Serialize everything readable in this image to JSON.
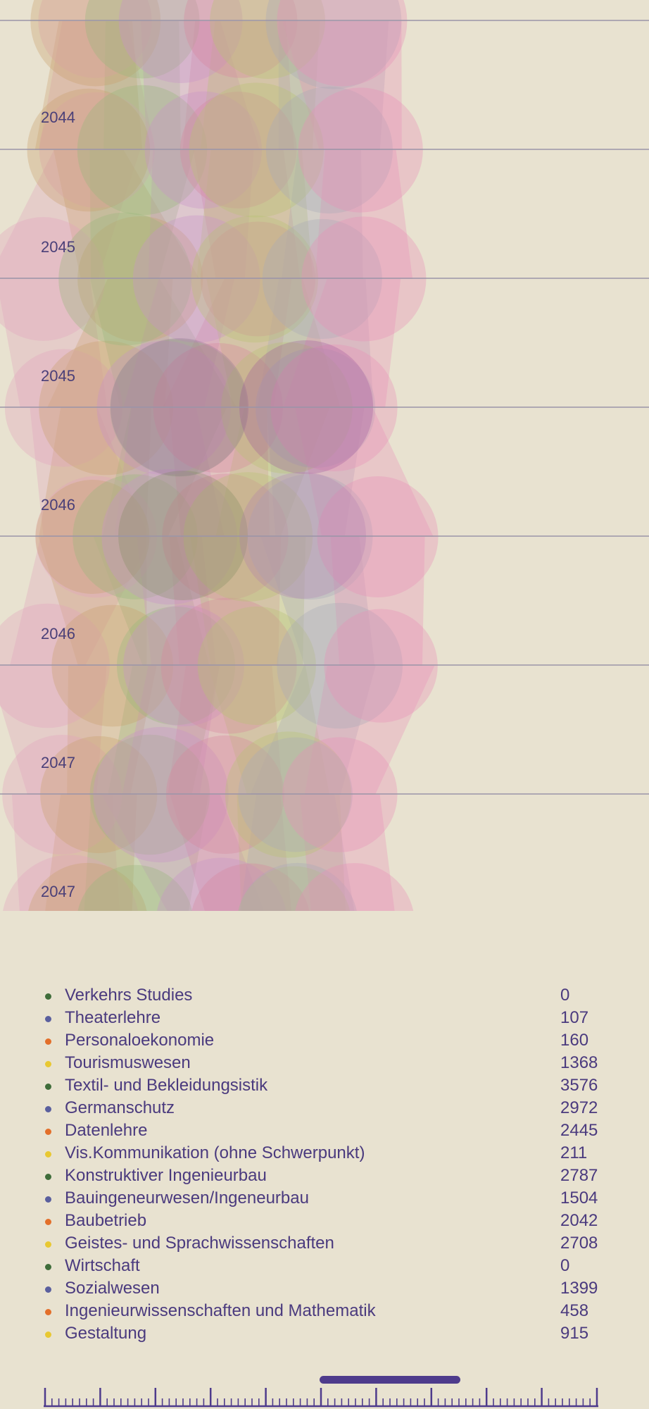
{
  "chart_data": {
    "type": "bubble-stream",
    "time_labels": [
      "2044",
      "2045",
      "2045",
      "2046",
      "2046",
      "2047",
      "2047"
    ],
    "grid": true,
    "legend": [
      {
        "name": "Verkehrs Studies",
        "value": 0,
        "color": "#3f6d3a"
      },
      {
        "name": "Theaterlehre",
        "value": 107,
        "color": "#5a5f9e"
      },
      {
        "name": "Personaloekonomie",
        "value": 160,
        "color": "#e36f2a"
      },
      {
        "name": "Tourismuswesen",
        "value": 1368,
        "color": "#e8c832"
      },
      {
        "name": "Textil- und Bekleidungsistik",
        "value": 3576,
        "color": "#3f6d3a"
      },
      {
        "name": "Germanschutz",
        "value": 2972,
        "color": "#5a5f9e"
      },
      {
        "name": "Datenlehre",
        "value": 2445,
        "color": "#e36f2a"
      },
      {
        "name": "Vis.Kommunikation (ohne Schwerpunkt)",
        "value": 211,
        "color": "#e8c832"
      },
      {
        "name": "Konstruktiver Ingenieurbau",
        "value": 2787,
        "color": "#3f6d3a"
      },
      {
        "name": "Bauingeneurwesen/Ingeneurbau",
        "value": 1504,
        "color": "#5a5f9e"
      },
      {
        "name": "Baubetrieb",
        "value": 2042,
        "color": "#e36f2a"
      },
      {
        "name": "Geistes- und Sprachwissenschaften",
        "value": 2708,
        "color": "#e8c832"
      },
      {
        "name": "Wirtschaft",
        "value": 0,
        "color": "#3f6d3a"
      },
      {
        "name": "Sozialwesen",
        "value": 1399,
        "color": "#5a5f9e"
      },
      {
        "name": "Ingenieurwissenschaften und Mathematik",
        "value": 458,
        "color": "#e36f2a"
      },
      {
        "name": "Gestaltung",
        "value": 915,
        "color": "#e8c832"
      }
    ]
  },
  "colors": {
    "background": "#e8e2d0",
    "text": "#4a3a7e",
    "grid_line": "#9a94a8",
    "scrollbar": "#4e3b8c"
  }
}
